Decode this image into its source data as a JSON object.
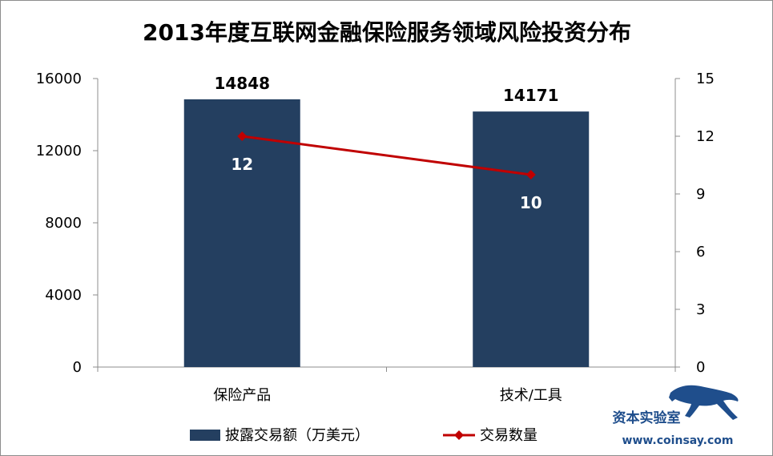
{
  "chart_data": {
    "type": "bar",
    "title": "2013年度互联网金融保险服务领域风险投资分布",
    "categories": [
      "保险产品",
      "技术/工具"
    ],
    "series": [
      {
        "name": "披露交易额（万美元）",
        "kind": "bar",
        "axis": "left",
        "color": "#243f60",
        "values": [
          14848,
          14171
        ]
      },
      {
        "name": "交易数量",
        "kind": "line",
        "axis": "right",
        "color": "#c00000",
        "values": [
          12,
          10
        ]
      }
    ],
    "y_left": {
      "ylim": [
        0,
        16000
      ],
      "ticks": [
        0,
        4000,
        8000,
        12000,
        16000
      ]
    },
    "y_right": {
      "ylim": [
        0,
        15
      ],
      "ticks": [
        0,
        3,
        6,
        9,
        12,
        15
      ]
    },
    "grid": false,
    "legend": "bottom"
  },
  "watermark": {
    "name": "资本实验室",
    "url": "www.coinsay.com"
  }
}
